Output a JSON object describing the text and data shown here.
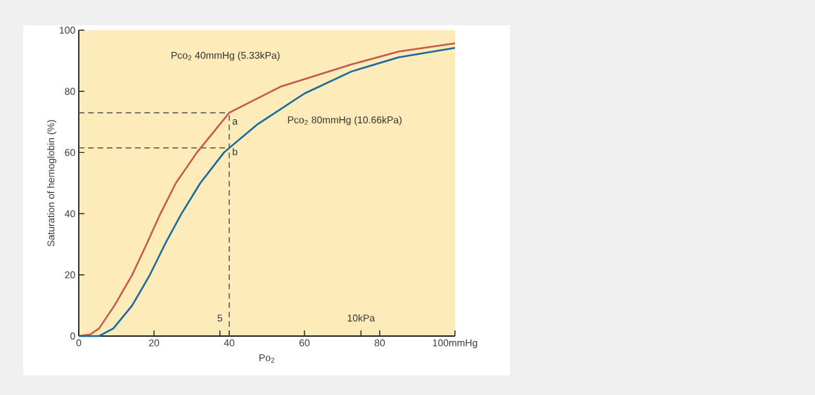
{
  "chart_data": {
    "type": "line",
    "xlabel": "Po$_{2}$",
    "ylabel": "Saturation of hemoglobin (%)",
    "xlim": [
      0,
      100
    ],
    "ylim": [
      0,
      100
    ],
    "xticks": [
      0,
      20,
      40,
      60,
      {
        "value": 80,
        "label": "80"
      },
      {
        "value": 100,
        "label": "100mmHg"
      }
    ],
    "yticks": [
      0,
      20,
      40,
      60,
      80,
      100
    ],
    "x2lim": [
      0,
      13.33
    ],
    "x2ticks": [
      5,
      {
        "value": 10,
        "label": "10kPa"
      }
    ],
    "grid": false,
    "legend": false,
    "marker": "none",
    "line_style": "solid",
    "series": [
      {
        "name": "Pco$_{2}$ 40mmHg (5.33kPa)",
        "color": "#c65a4b",
        "x": [
          0,
          3,
          5.4,
          9.5,
          14.2,
          18,
          21.7,
          25.8,
          31.4,
          40,
          53.8,
          72.5,
          85,
          100
        ],
        "values": [
          0,
          0.5,
          2.5,
          10,
          20,
          30,
          40,
          50,
          60,
          73,
          81.6,
          88.8,
          93,
          95.7
        ]
      },
      {
        "name": "Pco$_{2}$ 80mmHg (10.66kPa)",
        "color": "#1b6a9e",
        "x": [
          0,
          5.4,
          9.2,
          14.2,
          18.9,
          22.9,
          27.3,
          32.3,
          38.6,
          40,
          47.6,
          60,
          72.5,
          85,
          100
        ],
        "values": [
          0,
          0,
          2.5,
          10,
          20,
          30,
          40,
          50,
          60,
          61.5,
          69.3,
          79.3,
          86.5,
          91.1,
          94.2
        ]
      }
    ],
    "ref_lines": [
      {
        "axis": "y",
        "value": 73,
        "color": "#555555",
        "line_style": "dashed"
      },
      {
        "axis": "y",
        "value": 61.5,
        "color": "#555555",
        "line_style": "dashed"
      },
      {
        "axis": "x",
        "value": 40,
        "color": "#555555",
        "line_style": "dashed"
      }
    ],
    "annotations": [
      {
        "text": "a",
        "x": 40,
        "y": 73
      },
      {
        "text": "b",
        "x": 40,
        "y": 61.5
      }
    ]
  }
}
